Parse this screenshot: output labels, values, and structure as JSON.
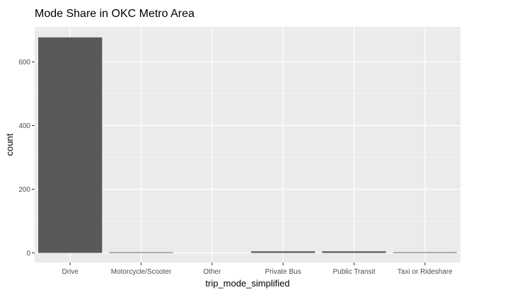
{
  "chart_data": {
    "type": "bar",
    "title": "Mode Share in OKC Metro Area",
    "xlabel": "trip_mode_simplified",
    "ylabel": "count",
    "categories": [
      "Drive",
      "Motorcycle/Scooter",
      "Other",
      "Private Bus",
      "Public Transit",
      "Taxi or Rideshare"
    ],
    "values": [
      677,
      2,
      0,
      5,
      5,
      2
    ],
    "ylim": [
      -30,
      710
    ],
    "yticks": [
      0,
      200,
      400,
      600
    ],
    "ytick_labels": [
      "0",
      "200",
      "400",
      "600"
    ],
    "grid": true,
    "colors": {
      "panel": "#ebebeb",
      "grid": "#ffffff",
      "bar": "#595959",
      "tick_text": "#4d4d4d",
      "tick_mark": "#333333"
    }
  }
}
